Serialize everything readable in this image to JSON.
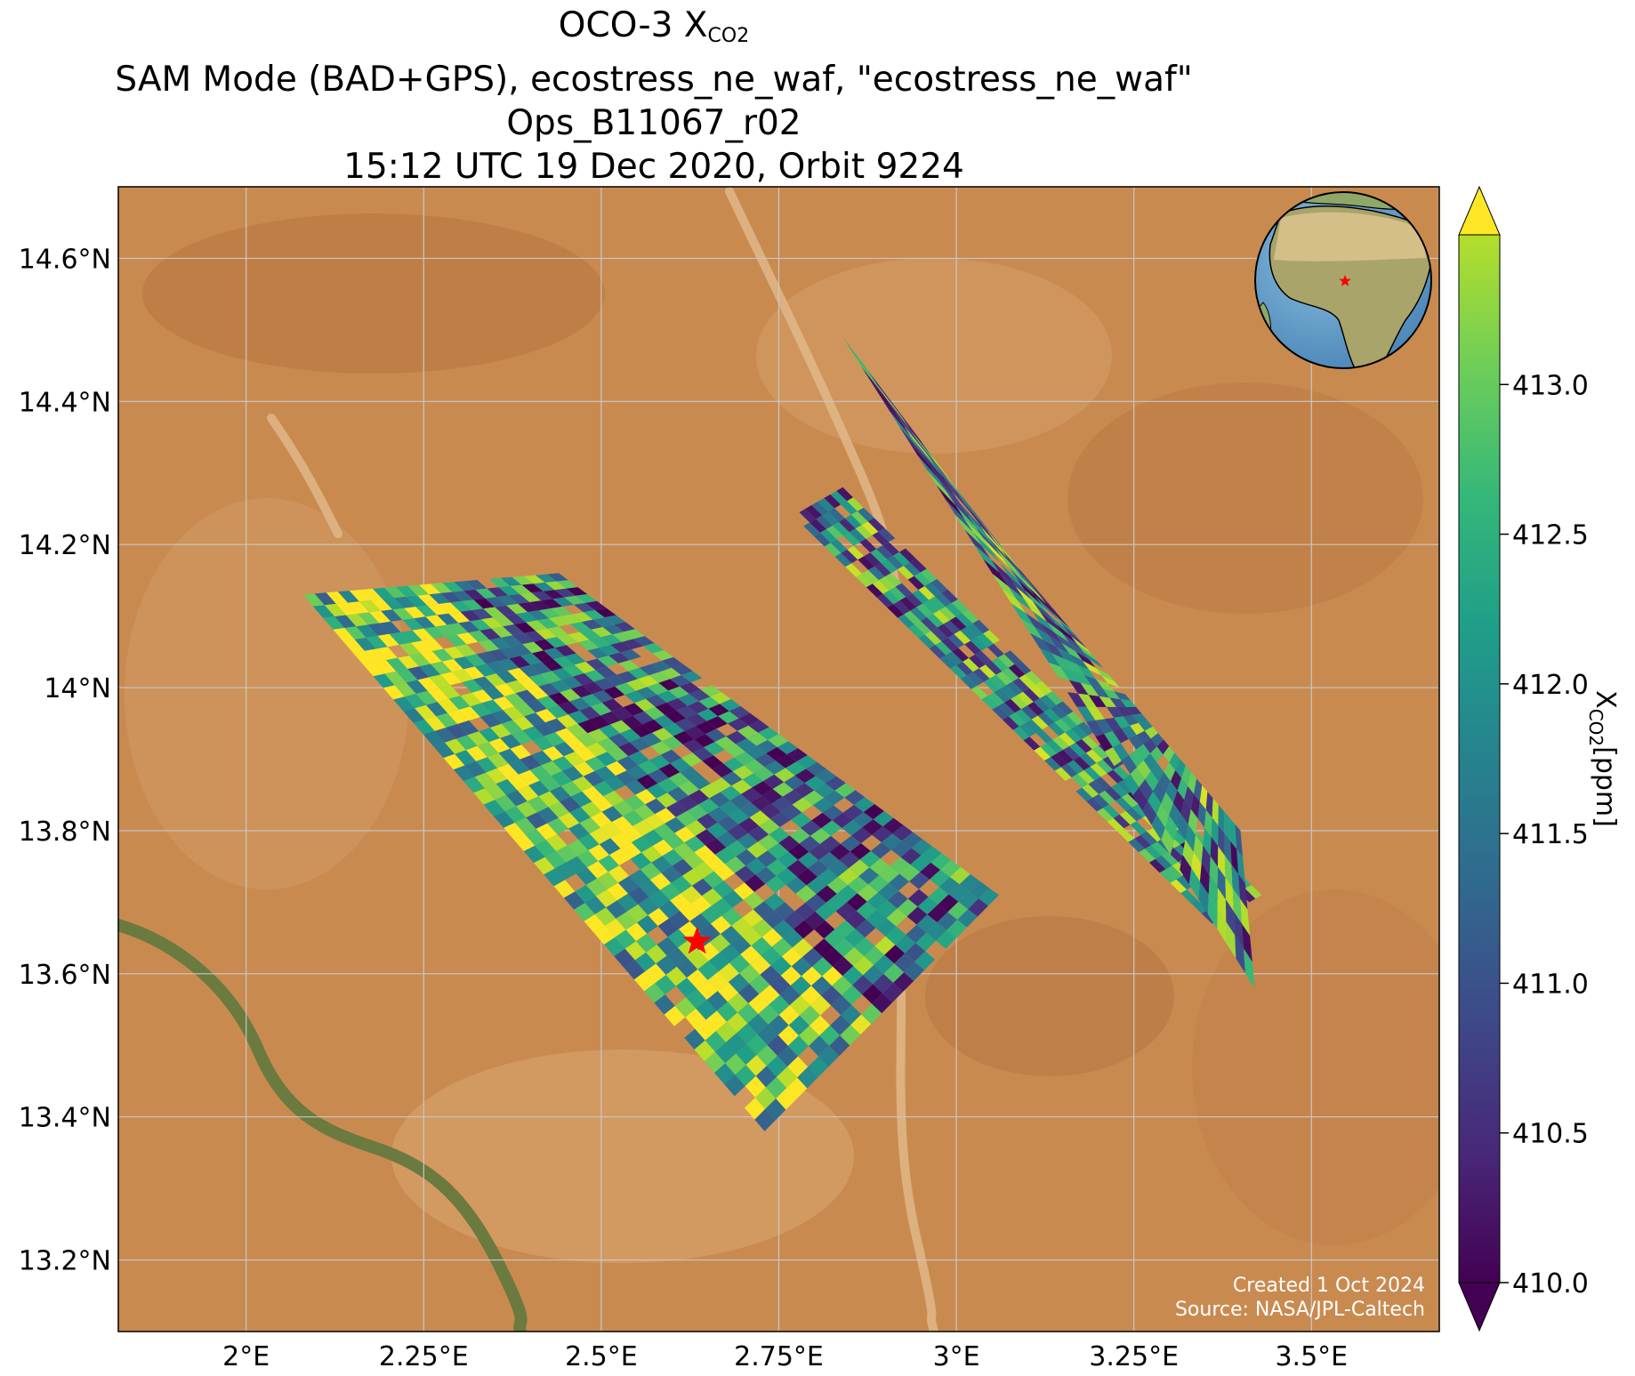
{
  "title": {
    "line1_text": "OCO-3 X",
    "line1_sub": "CO2",
    "line2": "SAM Mode (BAD+GPS), ecostress_ne_waf, \"ecostress_ne_waf\"",
    "line3": "Ops_B11067_r02",
    "line4": "15:12 UTC 19 Dec 2020, Orbit 9224"
  },
  "map": {
    "lon_range": [
      1.82,
      3.68
    ],
    "lat_range": [
      13.1,
      14.7
    ],
    "lon_ticks": [
      {
        "value": 2.0,
        "label": "2°E"
      },
      {
        "value": 2.25,
        "label": "2.25°E"
      },
      {
        "value": 2.5,
        "label": "2.5°E"
      },
      {
        "value": 2.75,
        "label": "2.75°E"
      },
      {
        "value": 3.0,
        "label": "3°E"
      },
      {
        "value": 3.25,
        "label": "3.25°E"
      },
      {
        "value": 3.5,
        "label": "3.5°E"
      }
    ],
    "lat_ticks": [
      {
        "value": 14.6,
        "label": "14.6°N"
      },
      {
        "value": 14.4,
        "label": "14.4°N"
      },
      {
        "value": 14.2,
        "label": "14.2°N"
      },
      {
        "value": 14.0,
        "label": "14°N"
      },
      {
        "value": 13.8,
        "label": "13.8°N"
      },
      {
        "value": 13.6,
        "label": "13.6°N"
      },
      {
        "value": 13.4,
        "label": "13.4°N"
      },
      {
        "value": 13.2,
        "label": "13.2°N"
      }
    ],
    "target": {
      "lon": 2.635,
      "lat": 13.645,
      "marker": "red-star"
    },
    "inset_globe": {
      "center_lon": 2.6,
      "center_lat": 13.6,
      "marker": "red-star"
    },
    "colors": {
      "basemap": "#c98a50",
      "river": "#6b7a3e",
      "target": "#ff0000",
      "gridline": "#c8c8c8"
    }
  },
  "colorbar": {
    "label_text": "X",
    "label_sub": "CO2",
    "label_unit": "[ppm]",
    "vmin": 410.0,
    "vmax": 413.5,
    "extend": "both",
    "colormap": "viridis",
    "ticks": [
      {
        "value": 410.0,
        "label": "410.0"
      },
      {
        "value": 410.5,
        "label": "410.5"
      },
      {
        "value": 411.0,
        "label": "411.0"
      },
      {
        "value": 411.5,
        "label": "411.5"
      },
      {
        "value": 412.0,
        "label": "412.0"
      },
      {
        "value": 412.5,
        "label": "412.5"
      },
      {
        "value": 413.0,
        "label": "413.0"
      }
    ]
  },
  "credits": {
    "created": "Created 1 Oct 2024",
    "source": "Source: NASA/JPL-Caltech"
  },
  "chart_data": {
    "type": "heatmap",
    "colormap": "viridis",
    "value_range": [
      410.0,
      413.5
    ],
    "swaths": [
      {
        "name": "",
        "corners_lonlat": [
          [
            2.08,
            14.13
          ],
          [
            2.44,
            14.16
          ],
          [
            3.06,
            13.71
          ],
          [
            2.73,
            13.38
          ]
        ],
        "value_range_ppm": [
          410.0,
          413.5
        ]
      },
      {
        "name": "",
        "corners_lonlat": [
          [
            2.77,
            14.24
          ],
          [
            2.84,
            14.28
          ],
          [
            3.43,
            13.71
          ],
          [
            3.36,
            13.67
          ]
        ],
        "value_range_ppm": [
          410.0,
          413.5
        ]
      },
      {
        "name": "",
        "corners_lonlat": [
          [
            2.84,
            14.49
          ],
          [
            3.06,
            14.2
          ],
          [
            3.4,
            13.8
          ],
          [
            3.42,
            13.58
          ]
        ],
        "value_range_ppm": [
          410.0,
          413.5
        ]
      }
    ]
  }
}
